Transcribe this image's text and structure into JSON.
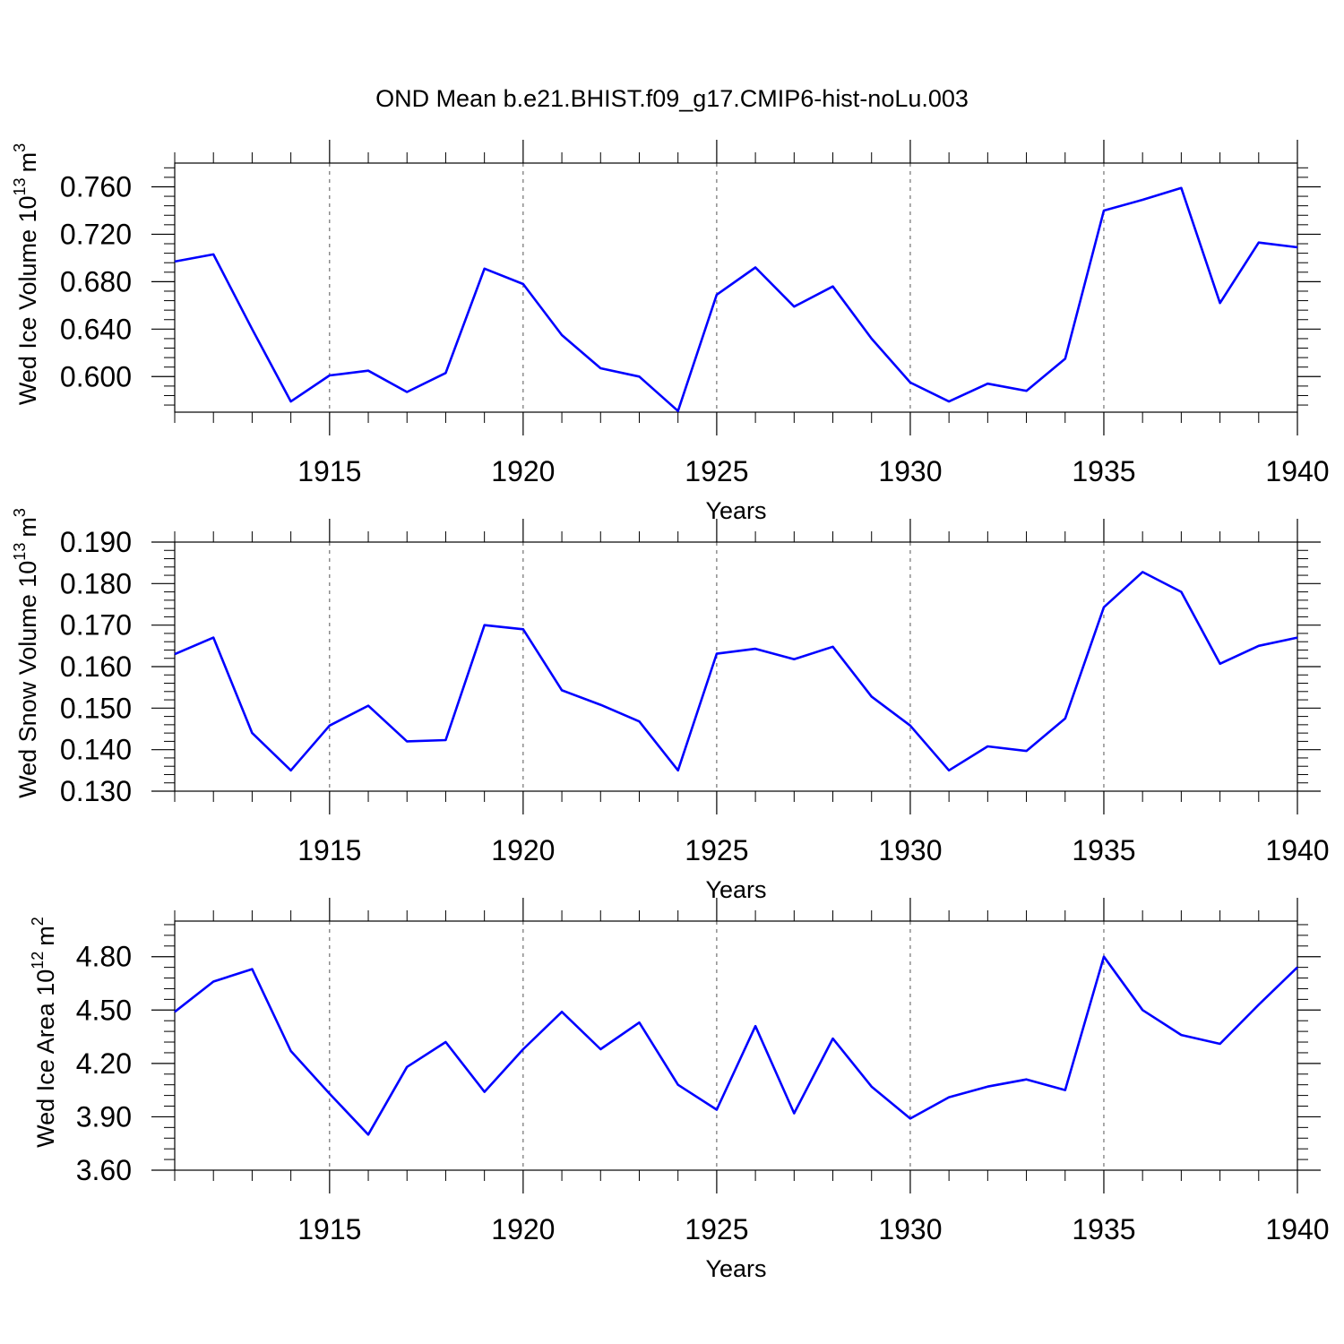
{
  "figure": {
    "title": "OND Mean b.e21.BHIST.f09_g17.CMIP6-hist-noLu.003"
  },
  "colors": {
    "line": "#0000ff",
    "axis": "#000000",
    "grid": "#555555",
    "background": "#ffffff"
  },
  "chart_data": [
    {
      "type": "line",
      "title": "",
      "xlabel": "Years",
      "ylabel": "Wed Ice Volume 10",
      "ylabel_exponent": "13",
      "ylabel_unit": "m",
      "ylabel_unit_exponent": "3",
      "x_ticks": [
        1915,
        1920,
        1925,
        1930,
        1935,
        1940
      ],
      "y_ticks": [
        "0.600",
        "0.640",
        "0.680",
        "0.720",
        "0.760"
      ],
      "xlim": [
        1911,
        1940
      ],
      "ylim": [
        0.57,
        0.78
      ],
      "grid": "vertical dashed at major x ticks",
      "legend": "none",
      "x": [
        1911,
        1912,
        1913,
        1914,
        1915,
        1916,
        1917,
        1918,
        1919,
        1920,
        1921,
        1922,
        1923,
        1924,
        1925,
        1926,
        1927,
        1928,
        1929,
        1930,
        1931,
        1932,
        1933,
        1934,
        1935,
        1936,
        1937,
        1938,
        1939,
        1940
      ],
      "series": [
        {
          "values": [
            0.697,
            0.703,
            0.64,
            0.579,
            0.601,
            0.605,
            0.587,
            0.603,
            0.691,
            0.678,
            0.635,
            0.607,
            0.6,
            0.571,
            0.669,
            0.692,
            0.659,
            0.676,
            0.632,
            0.595,
            0.579,
            0.594,
            0.588,
            0.615,
            0.74,
            0.749,
            0.759,
            0.662,
            0.713,
            0.709
          ]
        }
      ]
    },
    {
      "type": "line",
      "title": "",
      "xlabel": "Years",
      "ylabel": "Wed Snow Volume 10",
      "ylabel_exponent": "13",
      "ylabel_unit": "m",
      "ylabel_unit_exponent": "3",
      "x_ticks": [
        1915,
        1920,
        1925,
        1930,
        1935,
        1940
      ],
      "y_ticks": [
        "0.130",
        "0.140",
        "0.150",
        "0.160",
        "0.170",
        "0.180",
        "0.190"
      ],
      "xlim": [
        1911,
        1940
      ],
      "ylim": [
        0.13,
        0.19
      ],
      "grid": "vertical dashed at major x ticks",
      "legend": "none",
      "x": [
        1911,
        1912,
        1913,
        1914,
        1915,
        1916,
        1917,
        1918,
        1919,
        1920,
        1921,
        1922,
        1923,
        1924,
        1925,
        1926,
        1927,
        1928,
        1929,
        1930,
        1931,
        1932,
        1933,
        1934,
        1935,
        1936,
        1937,
        1938,
        1939,
        1940
      ],
      "series": [
        {
          "values": [
            0.163,
            0.167,
            0.144,
            0.135,
            0.1458,
            0.1506,
            0.142,
            0.1423,
            0.17,
            0.169,
            0.1543,
            0.1508,
            0.1468,
            0.135,
            0.1631,
            0.1643,
            0.1618,
            0.1648,
            0.1528,
            0.1458,
            0.135,
            0.1408,
            0.1397,
            0.1475,
            0.1743,
            0.1828,
            0.178,
            0.1607,
            0.165,
            0.167
          ]
        }
      ]
    },
    {
      "type": "line",
      "title": "",
      "xlabel": "Years",
      "ylabel": "Wed Ice Area 10",
      "ylabel_exponent": "12",
      "ylabel_unit": "m",
      "ylabel_unit_exponent": "2",
      "x_ticks": [
        1915,
        1920,
        1925,
        1930,
        1935,
        1940
      ],
      "y_ticks": [
        "3.60",
        "3.90",
        "4.20",
        "4.50",
        "4.80"
      ],
      "xlim": [
        1911,
        1940
      ],
      "ylim": [
        3.6,
        5.0
      ],
      "grid": "vertical dashed at major x ticks",
      "legend": "none",
      "x": [
        1911,
        1912,
        1913,
        1914,
        1915,
        1916,
        1917,
        1918,
        1919,
        1920,
        1921,
        1922,
        1923,
        1924,
        1925,
        1926,
        1927,
        1928,
        1929,
        1930,
        1931,
        1932,
        1933,
        1934,
        1935,
        1936,
        1937,
        1938,
        1939,
        1940
      ],
      "series": [
        {
          "values": [
            4.49,
            4.66,
            4.73,
            4.27,
            4.03,
            3.8,
            4.18,
            4.32,
            4.04,
            4.28,
            4.49,
            4.28,
            4.43,
            4.08,
            3.94,
            4.41,
            3.92,
            4.34,
            4.07,
            3.89,
            4.01,
            4.07,
            4.11,
            4.05,
            4.8,
            4.5,
            4.36,
            4.31,
            4.53,
            4.74
          ]
        }
      ]
    }
  ]
}
